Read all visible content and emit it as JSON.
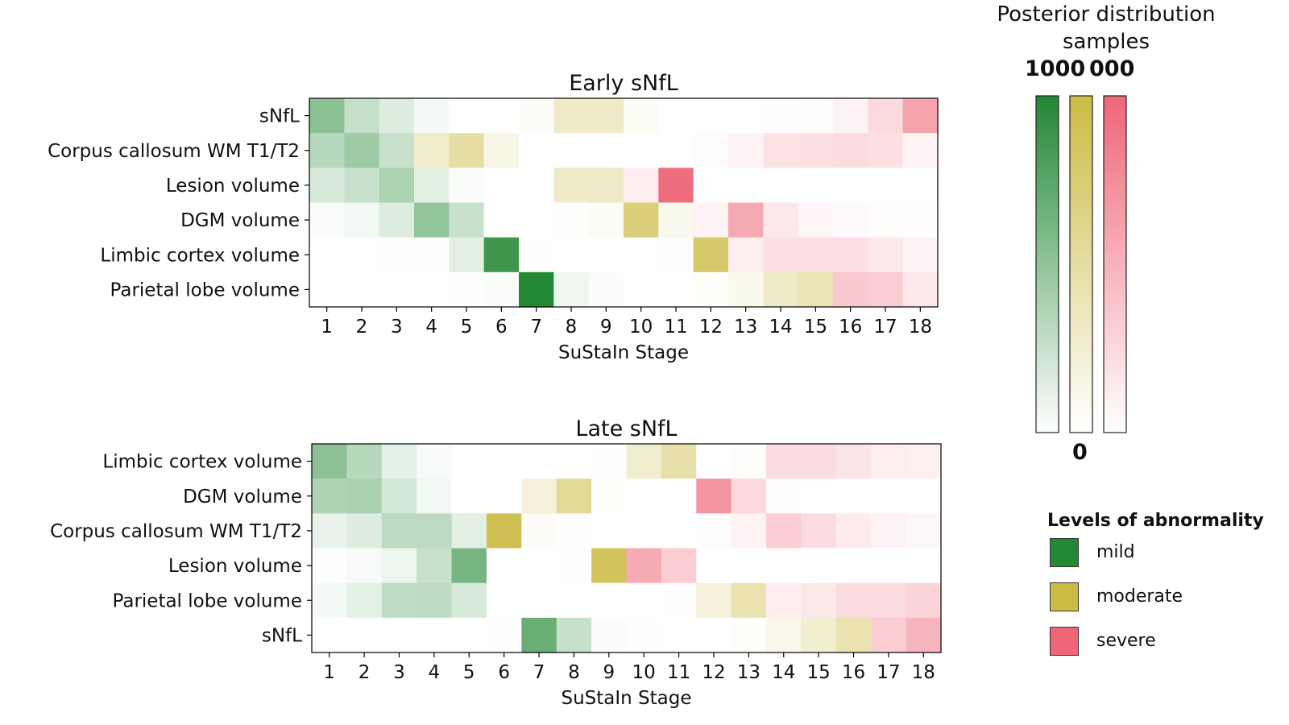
{
  "colors": {
    "mild": "#228833",
    "moderate": "#ccbb44",
    "severe": "#ee6677"
  },
  "colorbar": {
    "title_line1": "Posterior distribution",
    "title_line2": "samples",
    "max_labels": [
      "1000",
      "000"
    ],
    "min_label": "0"
  },
  "legend": {
    "title": "Levels of abnormality",
    "items": [
      {
        "label": "mild",
        "color": "#228833"
      },
      {
        "label": "moderate",
        "color": "#ccbb44"
      },
      {
        "label": "severe",
        "color": "#ee6677"
      }
    ]
  },
  "chart_data": [
    {
      "type": "heatmap",
      "title": "Early sNfL",
      "xlabel": "SuStaIn Stage",
      "x": [
        1,
        2,
        3,
        4,
        5,
        6,
        7,
        8,
        9,
        10,
        11,
        12,
        13,
        14,
        15,
        16,
        17,
        18
      ],
      "rows": [
        "sNfL",
        "Corpus callosum WM T1/T2",
        "Lesion volume",
        "DGM volume",
        "Limbic cortex volume",
        "Parietal lobe volume"
      ],
      "value_range": [
        0,
        1000
      ],
      "cells": [
        [
          {
            "level": "mild",
            "value": 530
          },
          {
            "level": "mild",
            "value": 270
          },
          {
            "level": "mild",
            "value": 160
          },
          {
            "level": "mild",
            "value": 50
          },
          {
            "level": "mild",
            "value": 0
          },
          {
            "level": "mild",
            "value": 0
          },
          {
            "level": "moderate",
            "value": 40
          },
          {
            "level": "moderate",
            "value": 300
          },
          {
            "level": "moderate",
            "value": 300
          },
          {
            "level": "moderate",
            "value": 60
          },
          {
            "level": "severe",
            "value": 0
          },
          {
            "level": "severe",
            "value": 0
          },
          {
            "level": "severe",
            "value": 0
          },
          {
            "level": "severe",
            "value": 10
          },
          {
            "level": "severe",
            "value": 20
          },
          {
            "level": "severe",
            "value": 80
          },
          {
            "level": "severe",
            "value": 240
          },
          {
            "level": "severe",
            "value": 600
          }
        ],
        [
          {
            "level": "mild",
            "value": 330
          },
          {
            "level": "mild",
            "value": 440
          },
          {
            "level": "mild",
            "value": 250
          },
          {
            "level": "moderate",
            "value": 280
          },
          {
            "level": "moderate",
            "value": 490
          },
          {
            "level": "moderate",
            "value": 130
          },
          {
            "level": "mild",
            "value": 0
          },
          {
            "level": "mild",
            "value": 0
          },
          {
            "level": "mild",
            "value": 0
          },
          {
            "level": "mild",
            "value": 0
          },
          {
            "level": "mild",
            "value": 0
          },
          {
            "level": "severe",
            "value": 20
          },
          {
            "level": "severe",
            "value": 80
          },
          {
            "level": "severe",
            "value": 190
          },
          {
            "level": "severe",
            "value": 200
          },
          {
            "level": "severe",
            "value": 230
          },
          {
            "level": "severe",
            "value": 200
          },
          {
            "level": "severe",
            "value": 70
          }
        ],
        [
          {
            "level": "mild",
            "value": 180
          },
          {
            "level": "mild",
            "value": 250
          },
          {
            "level": "mild",
            "value": 380
          },
          {
            "level": "mild",
            "value": 130
          },
          {
            "level": "mild",
            "value": 20
          },
          {
            "level": "mild",
            "value": 0
          },
          {
            "level": "mild",
            "value": 0
          },
          {
            "level": "moderate",
            "value": 300
          },
          {
            "level": "moderate",
            "value": 300
          },
          {
            "level": "severe",
            "value": 120
          },
          {
            "level": "severe",
            "value": 950
          },
          {
            "level": "severe",
            "value": 0
          },
          {
            "level": "severe",
            "value": 0
          },
          {
            "level": "severe",
            "value": 0
          },
          {
            "level": "severe",
            "value": 0
          },
          {
            "level": "severe",
            "value": 0
          },
          {
            "level": "severe",
            "value": 0
          },
          {
            "level": "severe",
            "value": 0
          }
        ],
        [
          {
            "level": "mild",
            "value": 20
          },
          {
            "level": "mild",
            "value": 60
          },
          {
            "level": "mild",
            "value": 160
          },
          {
            "level": "mild",
            "value": 490
          },
          {
            "level": "mild",
            "value": 250
          },
          {
            "level": "mild",
            "value": 0
          },
          {
            "level": "mild",
            "value": 0
          },
          {
            "level": "moderate",
            "value": 10
          },
          {
            "level": "moderate",
            "value": 60
          },
          {
            "level": "moderate",
            "value": 710
          },
          {
            "level": "moderate",
            "value": 90
          },
          {
            "level": "severe",
            "value": 80
          },
          {
            "level": "severe",
            "value": 560
          },
          {
            "level": "severe",
            "value": 160
          },
          {
            "level": "severe",
            "value": 60
          },
          {
            "level": "severe",
            "value": 40
          },
          {
            "level": "severe",
            "value": 20
          },
          {
            "level": "severe",
            "value": 20
          }
        ],
        [
          {
            "level": "mild",
            "value": 0
          },
          {
            "level": "mild",
            "value": 0
          },
          {
            "level": "mild",
            "value": 10
          },
          {
            "level": "mild",
            "value": 10
          },
          {
            "level": "mild",
            "value": 130
          },
          {
            "level": "mild",
            "value": 880
          },
          {
            "level": "mild",
            "value": 10
          },
          {
            "level": "mild",
            "value": 0
          },
          {
            "level": "mild",
            "value": 0
          },
          {
            "level": "mild",
            "value": 0
          },
          {
            "level": "mild",
            "value": 10
          },
          {
            "level": "moderate",
            "value": 800
          },
          {
            "level": "severe",
            "value": 110
          },
          {
            "level": "severe",
            "value": 200
          },
          {
            "level": "severe",
            "value": 210
          },
          {
            "level": "severe",
            "value": 200
          },
          {
            "level": "severe",
            "value": 150
          },
          {
            "level": "severe",
            "value": 80
          }
        ],
        [
          {
            "level": "mild",
            "value": 0
          },
          {
            "level": "mild",
            "value": 0
          },
          {
            "level": "mild",
            "value": 0
          },
          {
            "level": "mild",
            "value": 0
          },
          {
            "level": "mild",
            "value": 10
          },
          {
            "level": "mild",
            "value": 20
          },
          {
            "level": "mild",
            "value": 1000
          },
          {
            "level": "mild",
            "value": 70
          },
          {
            "level": "mild",
            "value": 20
          },
          {
            "level": "mild",
            "value": 0
          },
          {
            "level": "mild",
            "value": 0
          },
          {
            "level": "moderate",
            "value": 20
          },
          {
            "level": "moderate",
            "value": 90
          },
          {
            "level": "moderate",
            "value": 300
          },
          {
            "level": "moderate",
            "value": 400
          },
          {
            "level": "severe",
            "value": 350
          },
          {
            "level": "severe",
            "value": 330
          },
          {
            "level": "severe",
            "value": 150
          }
        ]
      ]
    },
    {
      "type": "heatmap",
      "title": "Late sNfL",
      "xlabel": "SuStaIn Stage",
      "x": [
        1,
        2,
        3,
        4,
        5,
        6,
        7,
        8,
        9,
        10,
        11,
        12,
        13,
        14,
        15,
        16,
        17,
        18
      ],
      "rows": [
        "Limbic cortex volume",
        "DGM volume",
        "Corpus callosum WM T1/T2",
        "Lesion volume",
        "Parietal lobe volume",
        "sNfL"
      ],
      "value_range": [
        0,
        1000
      ],
      "cells": [
        [
          {
            "level": "mild",
            "value": 520
          },
          {
            "level": "mild",
            "value": 330
          },
          {
            "level": "mild",
            "value": 120
          },
          {
            "level": "mild",
            "value": 30
          },
          {
            "level": "mild",
            "value": 0
          },
          {
            "level": "mild",
            "value": 0
          },
          {
            "level": "mild",
            "value": 0
          },
          {
            "level": "mild",
            "value": 0
          },
          {
            "level": "mild",
            "value": 10
          },
          {
            "level": "moderate",
            "value": 250
          },
          {
            "level": "moderate",
            "value": 450
          },
          {
            "level": "severe",
            "value": 0
          },
          {
            "level": "severe",
            "value": 20
          },
          {
            "level": "severe",
            "value": 230
          },
          {
            "level": "severe",
            "value": 230
          },
          {
            "level": "severe",
            "value": 170
          },
          {
            "level": "severe",
            "value": 120
          },
          {
            "level": "severe",
            "value": 100
          }
        ],
        [
          {
            "level": "mild",
            "value": 370
          },
          {
            "level": "mild",
            "value": 390
          },
          {
            "level": "mild",
            "value": 200
          },
          {
            "level": "mild",
            "value": 60
          },
          {
            "level": "mild",
            "value": 0
          },
          {
            "level": "mild",
            "value": 0
          },
          {
            "level": "moderate",
            "value": 200
          },
          {
            "level": "moderate",
            "value": 560
          },
          {
            "level": "moderate",
            "value": 20
          },
          {
            "level": "mild",
            "value": 0
          },
          {
            "level": "mild",
            "value": 0
          },
          {
            "level": "severe",
            "value": 700
          },
          {
            "level": "severe",
            "value": 250
          },
          {
            "level": "severe",
            "value": 10
          },
          {
            "level": "severe",
            "value": 0
          },
          {
            "level": "severe",
            "value": 0
          },
          {
            "level": "severe",
            "value": 0
          },
          {
            "level": "severe",
            "value": 0
          }
        ],
        [
          {
            "level": "mild",
            "value": 100
          },
          {
            "level": "mild",
            "value": 150
          },
          {
            "level": "mild",
            "value": 300
          },
          {
            "level": "mild",
            "value": 300
          },
          {
            "level": "mild",
            "value": 130
          },
          {
            "level": "moderate",
            "value": 920
          },
          {
            "level": "moderate",
            "value": 40
          },
          {
            "level": "moderate",
            "value": 10
          },
          {
            "level": "moderate",
            "value": 0
          },
          {
            "level": "moderate",
            "value": 0
          },
          {
            "level": "severe",
            "value": 0
          },
          {
            "level": "severe",
            "value": 20
          },
          {
            "level": "severe",
            "value": 70
          },
          {
            "level": "severe",
            "value": 320
          },
          {
            "level": "severe",
            "value": 220
          },
          {
            "level": "severe",
            "value": 130
          },
          {
            "level": "severe",
            "value": 80
          },
          {
            "level": "severe",
            "value": 50
          }
        ],
        [
          {
            "level": "mild",
            "value": 10
          },
          {
            "level": "mild",
            "value": 30
          },
          {
            "level": "mild",
            "value": 80
          },
          {
            "level": "mild",
            "value": 250
          },
          {
            "level": "mild",
            "value": 620
          },
          {
            "level": "mild",
            "value": 0
          },
          {
            "level": "mild",
            "value": 0
          },
          {
            "level": "mild",
            "value": 10
          },
          {
            "level": "moderate",
            "value": 880
          },
          {
            "level": "severe",
            "value": 550
          },
          {
            "level": "severe",
            "value": 330
          },
          {
            "level": "severe",
            "value": 0
          },
          {
            "level": "severe",
            "value": 0
          },
          {
            "level": "severe",
            "value": 0
          },
          {
            "level": "severe",
            "value": 0
          },
          {
            "level": "severe",
            "value": 0
          },
          {
            "level": "severe",
            "value": 0
          },
          {
            "level": "severe",
            "value": 0
          }
        ],
        [
          {
            "level": "mild",
            "value": 40
          },
          {
            "level": "mild",
            "value": 120
          },
          {
            "level": "mild",
            "value": 290
          },
          {
            "level": "mild",
            "value": 300
          },
          {
            "level": "mild",
            "value": 180
          },
          {
            "level": "mild",
            "value": 0
          },
          {
            "level": "mild",
            "value": 0
          },
          {
            "level": "mild",
            "value": 0
          },
          {
            "level": "mild",
            "value": 0
          },
          {
            "level": "mild",
            "value": 0
          },
          {
            "level": "mild",
            "value": 10
          },
          {
            "level": "moderate",
            "value": 200
          },
          {
            "level": "moderate",
            "value": 420
          },
          {
            "level": "severe",
            "value": 120
          },
          {
            "level": "severe",
            "value": 160
          },
          {
            "level": "severe",
            "value": 220
          },
          {
            "level": "severe",
            "value": 230
          },
          {
            "level": "severe",
            "value": 280
          }
        ],
        [
          {
            "level": "mild",
            "value": 0
          },
          {
            "level": "mild",
            "value": 0
          },
          {
            "level": "mild",
            "value": 0
          },
          {
            "level": "mild",
            "value": 0
          },
          {
            "level": "mild",
            "value": 0
          },
          {
            "level": "mild",
            "value": 10
          },
          {
            "level": "mild",
            "value": 680
          },
          {
            "level": "mild",
            "value": 260
          },
          {
            "level": "mild",
            "value": 20
          },
          {
            "level": "mild",
            "value": 10
          },
          {
            "level": "mild",
            "value": 0
          },
          {
            "level": "mild",
            "value": 0
          },
          {
            "level": "moderate",
            "value": 30
          },
          {
            "level": "moderate",
            "value": 120
          },
          {
            "level": "moderate",
            "value": 250
          },
          {
            "level": "moderate",
            "value": 420
          },
          {
            "level": "severe",
            "value": 330
          },
          {
            "level": "severe",
            "value": 480
          }
        ]
      ]
    }
  ]
}
